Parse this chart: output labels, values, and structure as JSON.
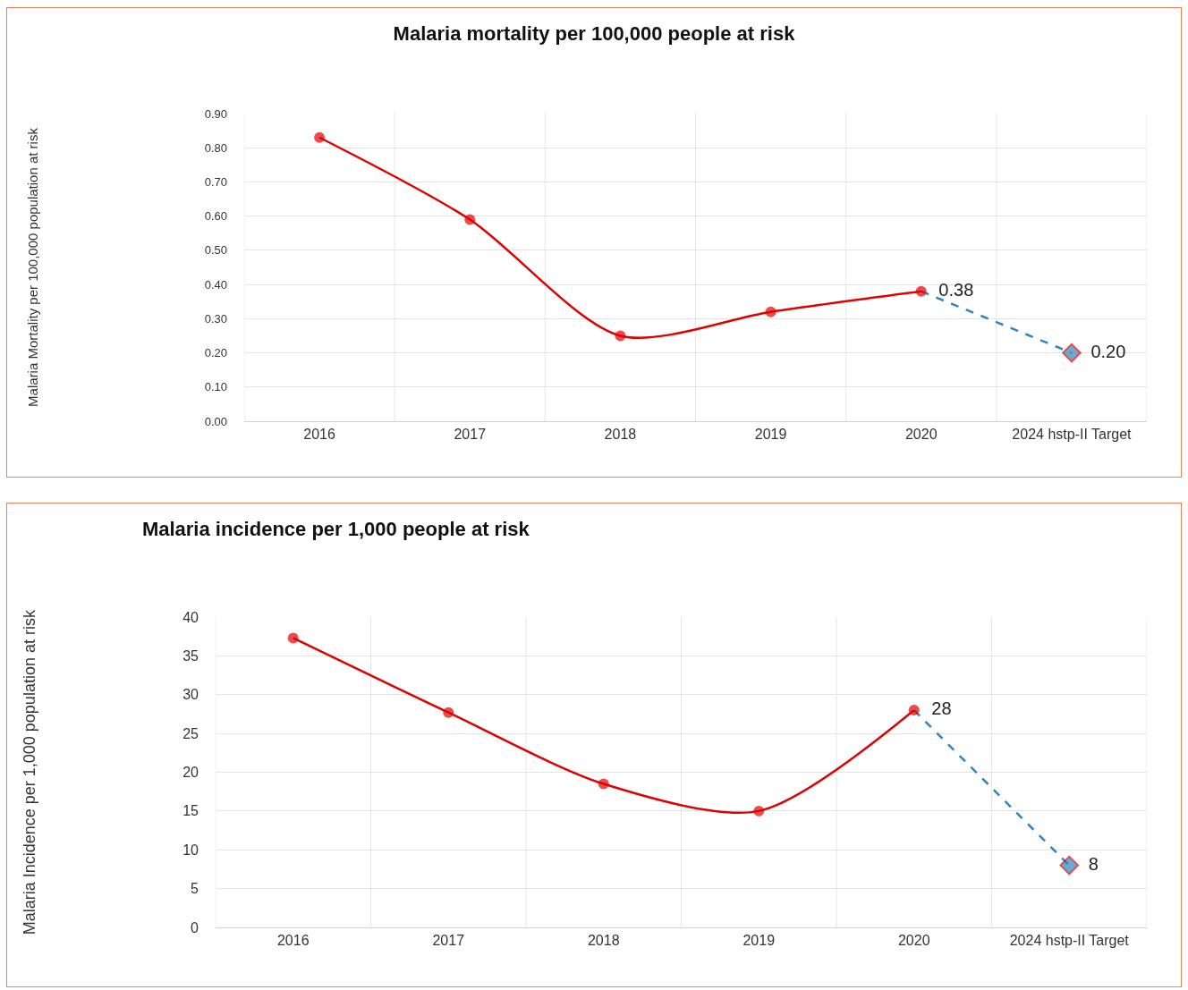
{
  "chart_data": [
    {
      "type": "line",
      "title": "Malaria mortality per 100,000 people at risk",
      "ylabel": "Malaria Mortality per 100,000 population at risk",
      "categories": [
        "2016",
        "2017",
        "2018",
        "2019",
        "2020",
        "2024 hstp-II Target"
      ],
      "series": [
        {
          "color": "#2e86c1",
          "values": [
            null,
            null,
            null,
            null,
            0.38,
            0.2
          ],
          "value_labels": [
            null,
            null,
            null,
            null,
            null,
            "0.20"
          ],
          "marker": "diamond",
          "line_style": "dashed"
        },
        {
          "color": "#e00000",
          "values": [
            0.83,
            0.59,
            0.25,
            0.32,
            0.38,
            null
          ],
          "value_labels": [
            null,
            null,
            null,
            null,
            "0.38",
            null
          ],
          "marker": "circle",
          "line_style": "solid"
        }
      ],
      "ylim": [
        0,
        0.9
      ],
      "yticks": [
        {
          "value": 0,
          "label": "0.00"
        },
        {
          "value": 0.1,
          "label": "0.10"
        },
        {
          "value": 0.2,
          "label": "0.20"
        },
        {
          "value": 0.3,
          "label": "0.30"
        },
        {
          "value": 0.4,
          "label": "0.40"
        },
        {
          "value": 0.5,
          "label": "0.50"
        },
        {
          "value": 0.6,
          "label": "0.60"
        },
        {
          "value": 0.7,
          "label": "0.70"
        },
        {
          "value": 0.8,
          "label": "0.80"
        },
        {
          "value": 0.9,
          "label": "0.90"
        }
      ],
      "grid": true
    },
    {
      "type": "line",
      "title": "Malaria incidence per 1,000 people at risk",
      "ylabel": "Malaria Incidence per 1,000 population at risk",
      "categories": [
        "2016",
        "2017",
        "2018",
        "2019",
        "2020",
        "2024 hstp-II Target"
      ],
      "series": [
        {
          "color": "#2e86c1",
          "values": [
            null,
            null,
            null,
            null,
            28,
            8
          ],
          "value_labels": [
            null,
            null,
            null,
            null,
            null,
            "8"
          ],
          "marker": "diamond",
          "line_style": "dashed"
        },
        {
          "color": "#e00000",
          "values": [
            37.3,
            27.7,
            18.5,
            15.0,
            28,
            null
          ],
          "value_labels": [
            null,
            null,
            null,
            null,
            "28",
            null
          ],
          "marker": "circle",
          "line_style": "solid"
        }
      ],
      "ylim": [
        0,
        40
      ],
      "yticks": [
        0,
        5,
        10,
        15,
        20,
        25,
        30,
        35,
        40
      ],
      "grid": true
    }
  ]
}
